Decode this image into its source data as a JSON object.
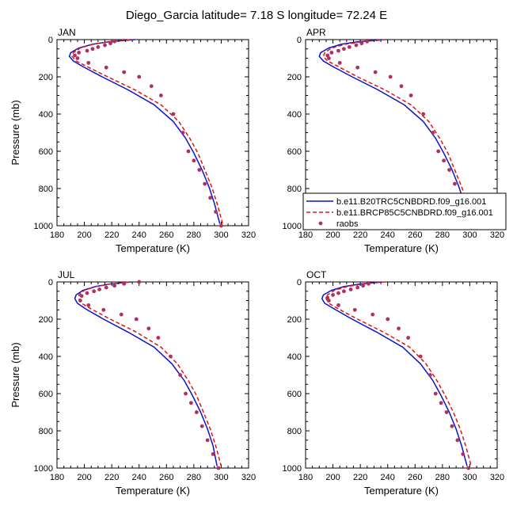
{
  "page_title": "Diego_Garcia  latitude= 7.18 S longitude= 72.24 E",
  "colors": {
    "model1": "#0a14c8",
    "model2": "#e01414",
    "raobs": "#b03060",
    "axis": "#000000"
  },
  "legend": {
    "entries": [
      {
        "label": "b.e11.B20TRC5CNBDRD.f09_g16.001",
        "style": "solid-line",
        "color": "#0a14c8"
      },
      {
        "label": "b.e11.BRCP85C5CNBDRD.f09_g16.001",
        "style": "dashed-line",
        "color": "#e01414"
      },
      {
        "label": "raobs",
        "style": "dot",
        "color": "#b03060"
      }
    ]
  },
  "chart_data": [
    {
      "type": "line",
      "title": "JAN",
      "xlabel": "Temperature (K)",
      "ylabel": "Pressure (mb)",
      "xlim": [
        180,
        320
      ],
      "ylim": [
        1000,
        0
      ],
      "xticks": [
        180,
        200,
        220,
        240,
        260,
        280,
        300,
        320
      ],
      "yticks": [
        0,
        200,
        400,
        600,
        800,
        1000
      ],
      "series": [
        {
          "name": "b.e11.B20TRC5CNBDRD.f09_g16.001",
          "x": [
            237,
            228,
            218,
            206,
            196,
            190,
            189,
            192,
            199,
            213,
            232,
            251,
            265,
            274,
            280,
            286,
            291,
            295,
            299
          ],
          "y": [
            0,
            5,
            12,
            25,
            45,
            70,
            90,
            115,
            145,
            200,
            270,
            350,
            440,
            530,
            610,
            700,
            790,
            880,
            990
          ]
        },
        {
          "name": "b.e11.BRCP85C5CNBDRD.f09_g16.001",
          "x": [
            234,
            226,
            217,
            206,
            197,
            192,
            191,
            194,
            202,
            217,
            237,
            256,
            269,
            277,
            283,
            288,
            293,
            297,
            301
          ],
          "y": [
            0,
            5,
            12,
            25,
            45,
            70,
            90,
            115,
            145,
            200,
            270,
            350,
            440,
            530,
            610,
            700,
            790,
            880,
            990
          ]
        },
        {
          "name": "raobs",
          "marker": "dot",
          "x": [
            222,
            219,
            215,
            210,
            206,
            202,
            196,
            193,
            195,
            203,
            216,
            229,
            240,
            249,
            256,
            265,
            272,
            276,
            280,
            284,
            288,
            292,
            296,
            300
          ],
          "y": [
            10,
            20,
            30,
            40,
            50,
            60,
            70,
            85,
            100,
            125,
            150,
            175,
            200,
            250,
            300,
            400,
            500,
            600,
            650,
            700,
            775,
            850,
            925,
            1000
          ]
        }
      ]
    },
    {
      "type": "line",
      "title": "APR",
      "xlabel": "Temperature (K)",
      "ylabel": "",
      "xlim": [
        180,
        320
      ],
      "ylim": [
        1000,
        0
      ],
      "xticks": [
        180,
        200,
        220,
        240,
        260,
        280,
        300,
        320
      ],
      "yticks": [
        0,
        200,
        400,
        600,
        800,
        1000
      ],
      "series": [
        {
          "name": "b.e11.B20TRC5CNBDRD.f09_g16.001",
          "x": [
            236,
            228,
            218,
            206,
            197,
            191,
            190,
            193,
            200,
            214,
            233,
            252,
            266,
            275,
            281,
            287,
            292,
            296,
            300
          ],
          "y": [
            0,
            5,
            12,
            25,
            45,
            70,
            90,
            115,
            145,
            200,
            270,
            350,
            440,
            530,
            610,
            700,
            790,
            880,
            990
          ]
        },
        {
          "name": "b.e11.BRCP85C5CNBDRD.f09_g16.001",
          "x": [
            239,
            231,
            221,
            209,
            199,
            194,
            193,
            196,
            204,
            218,
            238,
            257,
            270,
            278,
            284,
            289,
            294,
            298,
            302
          ],
          "y": [
            0,
            5,
            12,
            25,
            45,
            70,
            90,
            115,
            145,
            200,
            270,
            350,
            440,
            530,
            610,
            700,
            790,
            880,
            990
          ]
        },
        {
          "name": "raobs",
          "marker": "dot",
          "x": [
            225,
            221,
            217,
            212,
            208,
            204,
            199,
            196,
            197,
            205,
            218,
            231,
            242,
            250,
            257,
            266,
            273,
            277,
            281,
            285,
            289,
            293,
            297,
            301
          ],
          "y": [
            10,
            20,
            30,
            40,
            50,
            60,
            70,
            85,
            100,
            125,
            150,
            175,
            200,
            250,
            300,
            400,
            500,
            600,
            650,
            700,
            775,
            850,
            925,
            1000
          ]
        }
      ]
    },
    {
      "type": "line",
      "title": "JUL",
      "xlabel": "Temperature (K)",
      "ylabel": "Pressure (mb)",
      "xlim": [
        180,
        320
      ],
      "ylim": [
        1000,
        0
      ],
      "xticks": [
        180,
        200,
        220,
        240,
        260,
        280,
        300,
        320
      ],
      "yticks": [
        0,
        200,
        400,
        600,
        800,
        1000
      ],
      "series": [
        {
          "name": "b.e11.B20TRC5CNBDRD.f09_g16.001",
          "x": [
            234,
            227,
            218,
            208,
            199,
            194,
            193,
            195,
            201,
            214,
            232,
            251,
            264,
            273,
            279,
            285,
            290,
            294,
            297
          ],
          "y": [
            0,
            5,
            12,
            25,
            45,
            70,
            90,
            115,
            145,
            200,
            270,
            350,
            440,
            530,
            610,
            700,
            790,
            880,
            990
          ]
        },
        {
          "name": "b.e11.BRCP85C5CNBDRD.f09_g16.001",
          "x": [
            233,
            226,
            218,
            208,
            200,
            196,
            196,
            198,
            205,
            219,
            238,
            256,
            268,
            276,
            282,
            287,
            292,
            296,
            300
          ],
          "y": [
            0,
            5,
            12,
            25,
            45,
            70,
            90,
            115,
            145,
            200,
            270,
            350,
            440,
            530,
            610,
            700,
            790,
            880,
            990
          ]
        },
        {
          "name": "raobs",
          "marker": "dot",
          "x": [
            240,
            229,
            222,
            216,
            211,
            207,
            202,
            198,
            197,
            203,
            214,
            227,
            238,
            247,
            254,
            263,
            270,
            274,
            278,
            282,
            286,
            290,
            294,
            298
          ],
          "y": [
            0,
            10,
            20,
            30,
            40,
            50,
            60,
            75,
            100,
            125,
            150,
            175,
            200,
            250,
            300,
            400,
            500,
            600,
            650,
            700,
            775,
            850,
            925,
            1000
          ]
        }
      ]
    },
    {
      "type": "line",
      "title": "OCT",
      "xlabel": "Temperature (K)",
      "ylabel": "",
      "xlim": [
        180,
        320
      ],
      "ylim": [
        1000,
        0
      ],
      "xticks": [
        180,
        200,
        220,
        240,
        260,
        280,
        300,
        320
      ],
      "yticks": [
        0,
        200,
        400,
        600,
        800,
        1000
      ],
      "series": [
        {
          "name": "b.e11.B20TRC5CNBDRD.f09_g16.001",
          "x": [
            236,
            228,
            219,
            208,
            199,
            193,
            192,
            194,
            201,
            214,
            232,
            251,
            264,
            273,
            279,
            285,
            290,
            294,
            298
          ],
          "y": [
            0,
            5,
            12,
            25,
            45,
            70,
            90,
            115,
            145,
            200,
            270,
            350,
            440,
            530,
            610,
            700,
            790,
            880,
            990
          ]
        },
        {
          "name": "b.e11.BRCP85C5CNBDRD.f09_g16.001",
          "x": [
            238,
            230,
            221,
            210,
            201,
            196,
            195,
            197,
            204,
            218,
            237,
            256,
            268,
            276,
            282,
            288,
            293,
            297,
            301
          ],
          "y": [
            0,
            5,
            12,
            25,
            45,
            70,
            90,
            115,
            145,
            200,
            270,
            350,
            440,
            530,
            610,
            700,
            790,
            880,
            990
          ]
        },
        {
          "name": "raobs",
          "marker": "dot",
          "x": [
            226,
            222,
            218,
            213,
            208,
            204,
            200,
            196,
            197,
            204,
            216,
            229,
            240,
            248,
            255,
            264,
            271,
            275,
            279,
            283,
            287,
            291,
            295,
            299
          ],
          "y": [
            10,
            20,
            30,
            40,
            50,
            60,
            70,
            85,
            100,
            125,
            150,
            175,
            200,
            250,
            300,
            400,
            500,
            600,
            650,
            700,
            775,
            850,
            925,
            1000
          ]
        }
      ]
    }
  ]
}
